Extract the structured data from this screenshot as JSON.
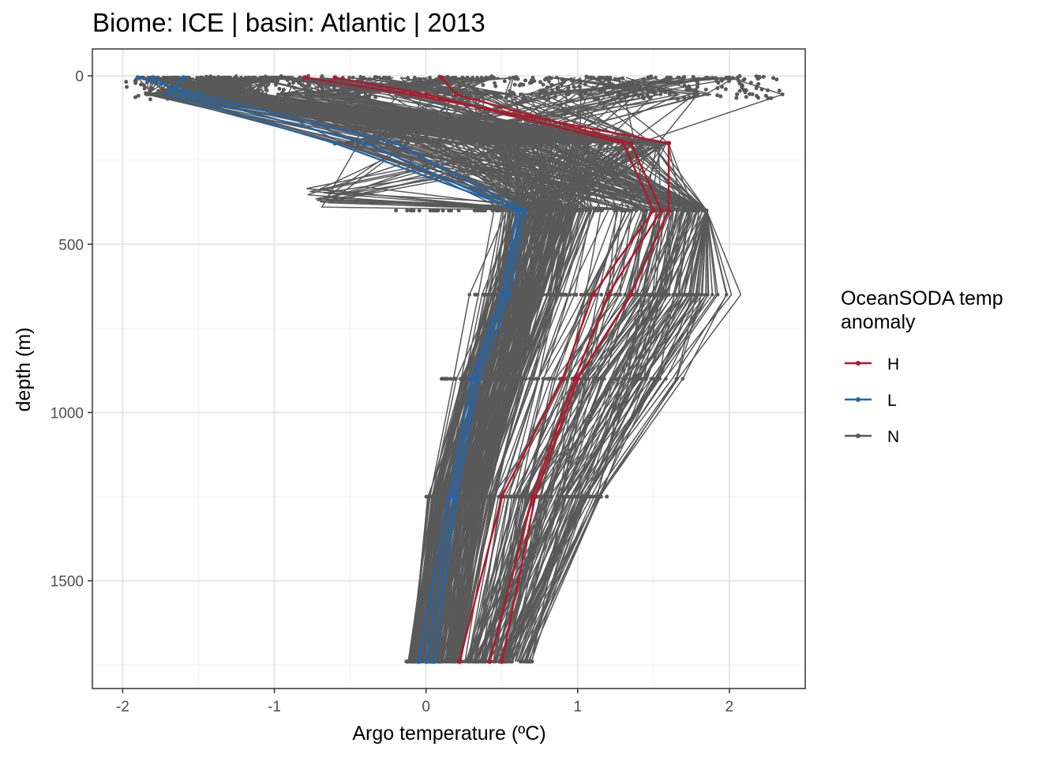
{
  "chart_data": {
    "type": "line",
    "title": "Biome: ICE | basin: Atlantic  |  2013",
    "xlabel": "Argo temperature (ºC)",
    "ylabel": "depth (m)",
    "xlim": [
      -2.2,
      2.5
    ],
    "ylim": [
      1820,
      -80
    ],
    "y_reversed": true,
    "x_ticks": [
      -2,
      -1,
      0,
      1,
      2
    ],
    "x_tick_labels": [
      "-2",
      "-1",
      "0",
      "1",
      "2"
    ],
    "y_ticks": [
      0,
      500,
      1000,
      1500
    ],
    "y_tick_labels": [
      "0",
      "500",
      "1000",
      "1500"
    ],
    "grid": true,
    "depth_levels": [
      5,
      55,
      200,
      400,
      650,
      900,
      1250,
      1740
    ],
    "legend": {
      "title_lines": [
        "OceanSODA temp",
        "anomaly"
      ],
      "placement": "right",
      "entries": [
        {
          "label": "H",
          "color": "#b2182b"
        },
        {
          "label": "L",
          "color": "#2166ac"
        },
        {
          "label": "N",
          "color": "#595959"
        }
      ]
    },
    "series": [
      {
        "anomaly": "N",
        "profiles_depicted": 300,
        "representative_profiles": [
          {
            "depth": [
              5,
              55,
              200,
              400,
              650,
              900,
              1250,
              1740
            ],
            "temp": [
              -1.9,
              -1.8,
              0.4,
              0.6,
              0.45,
              0.3,
              0.05,
              -0.1
            ]
          },
          {
            "depth": [
              5,
              55,
              200,
              400,
              650,
              900,
              1250,
              1740
            ],
            "temp": [
              2.0,
              2.35,
              1.4,
              1.8,
              1.7,
              1.45,
              1.15,
              0.65
            ]
          }
        ]
      },
      {
        "anomaly": "H",
        "profiles_depicted": 3,
        "profiles": [
          {
            "depth": [
              5,
              55,
              200,
              400,
              650,
              900,
              1250,
              1740
            ],
            "temp": [
              -0.8,
              -0.1,
              1.6,
              1.6,
              1.35,
              1.0,
              0.72,
              0.5
            ]
          },
          {
            "depth": [
              5,
              55,
              200,
              400,
              650,
              900,
              1250,
              1740
            ],
            "temp": [
              0.1,
              0.2,
              1.35,
              1.55,
              1.2,
              0.98,
              0.7,
              0.42
            ]
          },
          {
            "depth": [
              5,
              55,
              200,
              400,
              650,
              900,
              1250,
              1740
            ],
            "temp": [
              -0.6,
              0.0,
              1.3,
              1.5,
              1.1,
              0.9,
              0.5,
              0.22
            ]
          }
        ]
      },
      {
        "anomaly": "L",
        "profiles_depicted": 3,
        "profiles": [
          {
            "depth": [
              5,
              55,
              200,
              400,
              650,
              900,
              1250,
              1740
            ],
            "temp": [
              -1.9,
              -1.5,
              -0.2,
              0.65,
              0.55,
              0.35,
              0.2,
              0.05
            ]
          },
          {
            "depth": [
              5,
              55,
              200,
              400,
              650,
              900,
              1250,
              1740
            ],
            "temp": [
              -1.8,
              -1.6,
              -0.4,
              0.6,
              0.5,
              0.3,
              0.15,
              -0.05
            ]
          },
          {
            "depth": [
              5,
              55,
              200,
              400,
              650,
              900,
              1250,
              1740
            ],
            "temp": [
              -1.6,
              -1.7,
              -0.6,
              0.62,
              0.52,
              0.32,
              0.18,
              0.0
            ]
          }
        ]
      }
    ]
  }
}
